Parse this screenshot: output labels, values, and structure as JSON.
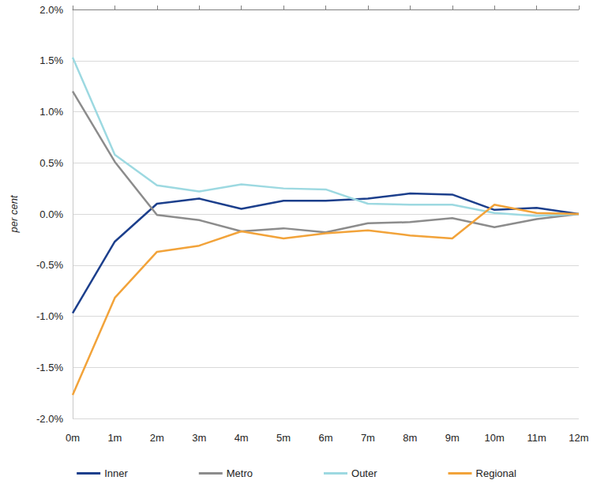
{
  "chart_data": {
    "type": "line",
    "y_label": "per cent",
    "categories": [
      "0m",
      "1m",
      "2m",
      "3m",
      "4m",
      "5m",
      "6m",
      "7m",
      "8m",
      "9m",
      "10m",
      "11m",
      "12m"
    ],
    "series": [
      {
        "name": "Inner",
        "color": "#1c3f8c",
        "values": [
          -0.97,
          -0.27,
          0.1,
          0.15,
          0.05,
          0.13,
          0.13,
          0.15,
          0.2,
          0.19,
          0.04,
          0.06,
          0.0
        ]
      },
      {
        "name": "Metro",
        "color": "#8c8c8c",
        "values": [
          1.2,
          0.51,
          -0.01,
          -0.06,
          -0.17,
          -0.14,
          -0.18,
          -0.09,
          -0.08,
          -0.04,
          -0.13,
          -0.05,
          0.0
        ]
      },
      {
        "name": "Outer",
        "color": "#9dd9e1",
        "values": [
          1.53,
          0.58,
          0.28,
          0.22,
          0.29,
          0.25,
          0.24,
          0.1,
          0.09,
          0.09,
          0.01,
          -0.02,
          0.0
        ]
      },
      {
        "name": "Regional",
        "color": "#f2a33a",
        "values": [
          -1.77,
          -0.82,
          -0.37,
          -0.31,
          -0.17,
          -0.24,
          -0.19,
          -0.16,
          -0.21,
          -0.24,
          0.09,
          0.01,
          0.0
        ]
      }
    ],
    "ylim": [
      -2.0,
      2.0
    ],
    "yticks": [
      {
        "value": -2.0,
        "label": "-2.0%"
      },
      {
        "value": -1.5,
        "label": "-1.5%"
      },
      {
        "value": -1.0,
        "label": "-1.0%"
      },
      {
        "value": -0.5,
        "label": "-0.5%"
      },
      {
        "value": 0.0,
        "label": "0.0%"
      },
      {
        "value": 0.5,
        "label": "0.5%"
      },
      {
        "value": 1.0,
        "label": "1.0%"
      },
      {
        "value": 1.5,
        "label": "1.5%"
      },
      {
        "value": 2.0,
        "label": "2.0%"
      }
    ],
    "grid": true,
    "legend": "bottom"
  }
}
